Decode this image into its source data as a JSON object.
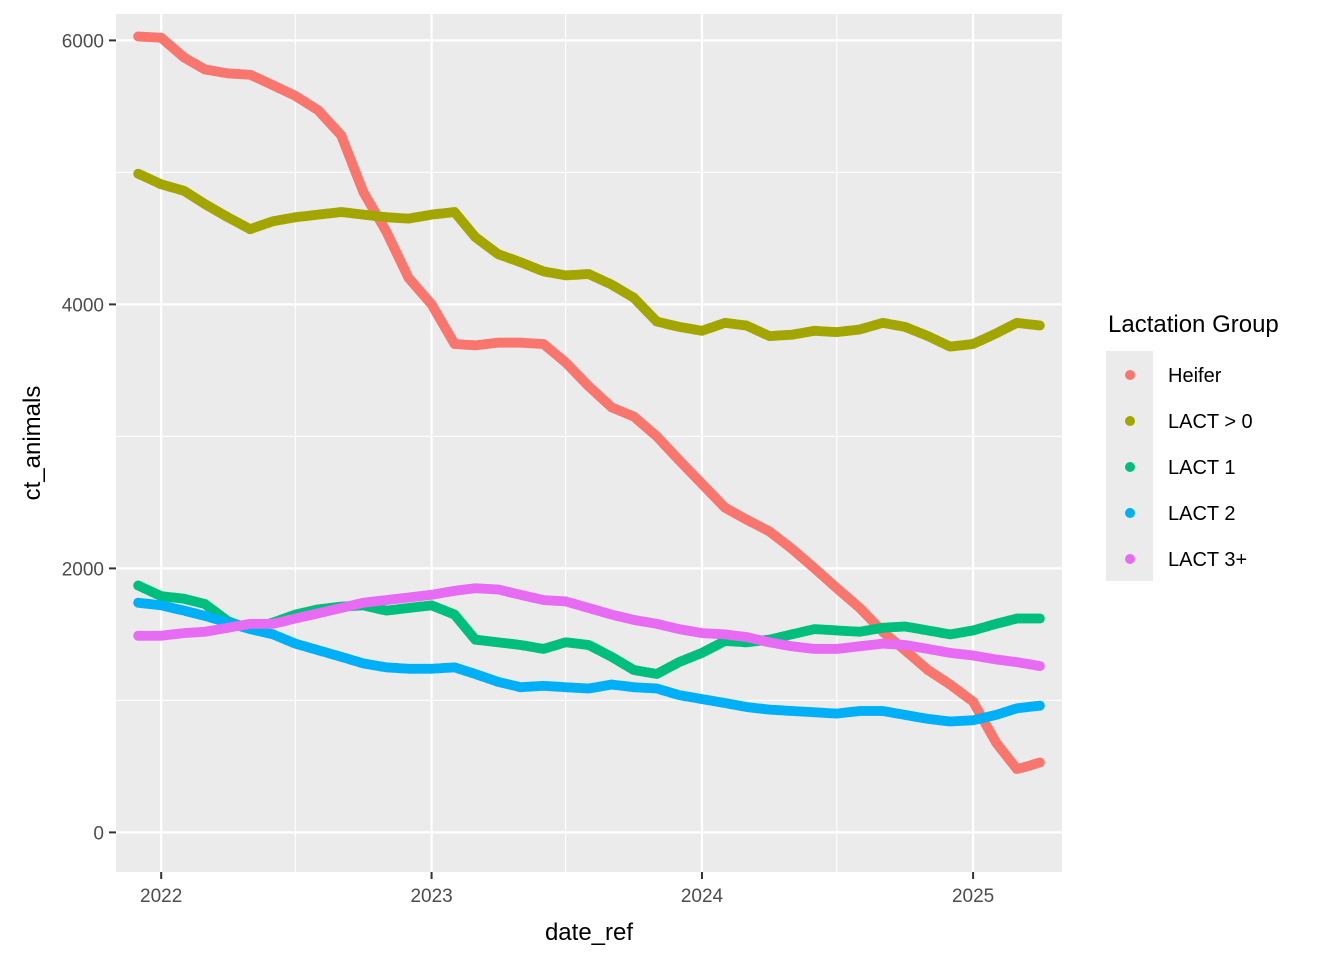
{
  "chart_data": {
    "type": "scatter",
    "xlabel": "date_ref",
    "ylabel": "ct_animals",
    "xlim": [
      "2021-11-01",
      "2025-05-01"
    ],
    "ylim": [
      -300,
      6200
    ],
    "x_ticks": [
      {
        "date": "2022-01-01",
        "label": "2022"
      },
      {
        "date": "2023-01-01",
        "label": "2023"
      },
      {
        "date": "2024-01-01",
        "label": "2024"
      },
      {
        "date": "2025-01-01",
        "label": "2025"
      }
    ],
    "x_minor_ticks": [
      "2022-07-01",
      "2023-07-01",
      "2024-07-01"
    ],
    "y_ticks": [
      {
        "value": 0,
        "label": "0"
      },
      {
        "value": 2000,
        "label": "2000"
      },
      {
        "value": 4000,
        "label": "4000"
      },
      {
        "value": 6000,
        "label": "6000"
      }
    ],
    "y_minor_ticks": [
      1000,
      3000,
      5000
    ],
    "grid": true,
    "legend": {
      "title": "Lactation Group",
      "position": "right"
    },
    "series": [
      {
        "name": "Heifer",
        "color": "#F8766D",
        "points": [
          [
            "2021-12-01",
            6030
          ],
          [
            "2022-01-01",
            6020
          ],
          [
            "2022-02-01",
            5870
          ],
          [
            "2022-03-01",
            5780
          ],
          [
            "2022-04-01",
            5750
          ],
          [
            "2022-05-01",
            5740
          ],
          [
            "2022-06-01",
            5660
          ],
          [
            "2022-07-01",
            5580
          ],
          [
            "2022-08-01",
            5470
          ],
          [
            "2022-09-01",
            5280
          ],
          [
            "2022-10-01",
            4850
          ],
          [
            "2022-11-01",
            4550
          ],
          [
            "2022-12-01",
            4200
          ],
          [
            "2023-01-01",
            4000
          ],
          [
            "2023-02-01",
            3700
          ],
          [
            "2023-03-01",
            3690
          ],
          [
            "2023-04-01",
            3710
          ],
          [
            "2023-05-01",
            3710
          ],
          [
            "2023-06-01",
            3700
          ],
          [
            "2023-07-01",
            3560
          ],
          [
            "2023-08-01",
            3380
          ],
          [
            "2023-09-01",
            3220
          ],
          [
            "2023-10-01",
            3150
          ],
          [
            "2023-11-01",
            3000
          ],
          [
            "2023-12-01",
            2820
          ],
          [
            "2024-01-01",
            2640
          ],
          [
            "2024-02-01",
            2460
          ],
          [
            "2024-03-01",
            2370
          ],
          [
            "2024-04-01",
            2280
          ],
          [
            "2024-05-01",
            2150
          ],
          [
            "2024-06-01",
            2000
          ],
          [
            "2024-07-01",
            1850
          ],
          [
            "2024-08-01",
            1700
          ],
          [
            "2024-09-01",
            1520
          ],
          [
            "2024-10-01",
            1380
          ],
          [
            "2024-11-01",
            1230
          ],
          [
            "2024-12-01",
            1120
          ],
          [
            "2025-01-01",
            990
          ],
          [
            "2025-02-01",
            680
          ],
          [
            "2025-03-01",
            480
          ],
          [
            "2025-03-15",
            500
          ],
          [
            "2025-04-01",
            530
          ]
        ]
      },
      {
        "name": "LACT > 0",
        "color": "#A3A500",
        "points": [
          [
            "2021-12-01",
            4990
          ],
          [
            "2022-01-01",
            4910
          ],
          [
            "2022-02-01",
            4860
          ],
          [
            "2022-03-01",
            4760
          ],
          [
            "2022-04-01",
            4660
          ],
          [
            "2022-05-01",
            4570
          ],
          [
            "2022-06-01",
            4630
          ],
          [
            "2022-07-01",
            4660
          ],
          [
            "2022-08-01",
            4680
          ],
          [
            "2022-09-01",
            4700
          ],
          [
            "2022-10-01",
            4680
          ],
          [
            "2022-11-01",
            4660
          ],
          [
            "2022-12-01",
            4650
          ],
          [
            "2023-01-01",
            4680
          ],
          [
            "2023-02-01",
            4700
          ],
          [
            "2023-03-01",
            4510
          ],
          [
            "2023-04-01",
            4380
          ],
          [
            "2023-05-01",
            4320
          ],
          [
            "2023-06-01",
            4250
          ],
          [
            "2023-07-01",
            4220
          ],
          [
            "2023-08-01",
            4230
          ],
          [
            "2023-09-01",
            4150
          ],
          [
            "2023-10-01",
            4050
          ],
          [
            "2023-11-01",
            3870
          ],
          [
            "2023-12-01",
            3830
          ],
          [
            "2024-01-01",
            3800
          ],
          [
            "2024-02-01",
            3860
          ],
          [
            "2024-03-01",
            3840
          ],
          [
            "2024-04-01",
            3760
          ],
          [
            "2024-05-01",
            3770
          ],
          [
            "2024-06-01",
            3800
          ],
          [
            "2024-07-01",
            3790
          ],
          [
            "2024-08-01",
            3810
          ],
          [
            "2024-09-01",
            3860
          ],
          [
            "2024-10-01",
            3830
          ],
          [
            "2024-11-01",
            3760
          ],
          [
            "2024-12-01",
            3680
          ],
          [
            "2025-01-01",
            3700
          ],
          [
            "2025-02-01",
            3780
          ],
          [
            "2025-03-01",
            3860
          ],
          [
            "2025-04-01",
            3840
          ]
        ]
      },
      {
        "name": "LACT 1",
        "color": "#00BF7D",
        "points": [
          [
            "2021-12-01",
            1870
          ],
          [
            "2022-01-01",
            1790
          ],
          [
            "2022-02-01",
            1770
          ],
          [
            "2022-03-01",
            1730
          ],
          [
            "2022-04-01",
            1600
          ],
          [
            "2022-05-01",
            1540
          ],
          [
            "2022-06-01",
            1590
          ],
          [
            "2022-07-01",
            1650
          ],
          [
            "2022-08-01",
            1690
          ],
          [
            "2022-09-01",
            1710
          ],
          [
            "2022-10-01",
            1720
          ],
          [
            "2022-11-01",
            1680
          ],
          [
            "2022-12-01",
            1700
          ],
          [
            "2023-01-01",
            1720
          ],
          [
            "2023-02-01",
            1650
          ],
          [
            "2023-03-01",
            1460
          ],
          [
            "2023-04-01",
            1440
          ],
          [
            "2023-05-01",
            1420
          ],
          [
            "2023-06-01",
            1390
          ],
          [
            "2023-07-01",
            1440
          ],
          [
            "2023-08-01",
            1420
          ],
          [
            "2023-09-01",
            1330
          ],
          [
            "2023-10-01",
            1230
          ],
          [
            "2023-11-01",
            1200
          ],
          [
            "2023-12-01",
            1290
          ],
          [
            "2024-01-01",
            1360
          ],
          [
            "2024-02-01",
            1450
          ],
          [
            "2024-03-01",
            1440
          ],
          [
            "2024-04-01",
            1460
          ],
          [
            "2024-05-01",
            1500
          ],
          [
            "2024-06-01",
            1540
          ],
          [
            "2024-07-01",
            1530
          ],
          [
            "2024-08-01",
            1520
          ],
          [
            "2024-09-01",
            1550
          ],
          [
            "2024-10-01",
            1560
          ],
          [
            "2024-11-01",
            1530
          ],
          [
            "2024-12-01",
            1500
          ],
          [
            "2025-01-01",
            1530
          ],
          [
            "2025-02-01",
            1580
          ],
          [
            "2025-03-01",
            1620
          ],
          [
            "2025-04-01",
            1620
          ]
        ]
      },
      {
        "name": "LACT 2",
        "color": "#00B0F6",
        "points": [
          [
            "2021-12-01",
            1740
          ],
          [
            "2022-01-01",
            1720
          ],
          [
            "2022-02-01",
            1680
          ],
          [
            "2022-03-01",
            1640
          ],
          [
            "2022-04-01",
            1590
          ],
          [
            "2022-05-01",
            1540
          ],
          [
            "2022-06-01",
            1500
          ],
          [
            "2022-07-01",
            1430
          ],
          [
            "2022-08-01",
            1380
          ],
          [
            "2022-09-01",
            1330
          ],
          [
            "2022-10-01",
            1280
          ],
          [
            "2022-11-01",
            1250
          ],
          [
            "2022-12-01",
            1240
          ],
          [
            "2023-01-01",
            1240
          ],
          [
            "2023-02-01",
            1250
          ],
          [
            "2023-03-01",
            1200
          ],
          [
            "2023-04-01",
            1140
          ],
          [
            "2023-05-01",
            1100
          ],
          [
            "2023-06-01",
            1110
          ],
          [
            "2023-07-01",
            1100
          ],
          [
            "2023-08-01",
            1090
          ],
          [
            "2023-09-01",
            1120
          ],
          [
            "2023-10-01",
            1100
          ],
          [
            "2023-11-01",
            1090
          ],
          [
            "2023-12-01",
            1040
          ],
          [
            "2024-01-01",
            1010
          ],
          [
            "2024-02-01",
            980
          ],
          [
            "2024-03-01",
            950
          ],
          [
            "2024-04-01",
            930
          ],
          [
            "2024-05-01",
            920
          ],
          [
            "2024-06-01",
            910
          ],
          [
            "2024-07-01",
            900
          ],
          [
            "2024-08-01",
            920
          ],
          [
            "2024-09-01",
            920
          ],
          [
            "2024-10-01",
            890
          ],
          [
            "2024-11-01",
            860
          ],
          [
            "2024-12-01",
            840
          ],
          [
            "2025-01-01",
            850
          ],
          [
            "2025-02-01",
            890
          ],
          [
            "2025-03-01",
            940
          ],
          [
            "2025-04-01",
            960
          ]
        ]
      },
      {
        "name": "LACT 3+",
        "color": "#E76BF3",
        "points": [
          [
            "2021-12-01",
            1490
          ],
          [
            "2022-01-01",
            1490
          ],
          [
            "2022-02-01",
            1510
          ],
          [
            "2022-03-01",
            1520
          ],
          [
            "2022-04-01",
            1550
          ],
          [
            "2022-05-01",
            1580
          ],
          [
            "2022-06-01",
            1580
          ],
          [
            "2022-07-01",
            1620
          ],
          [
            "2022-08-01",
            1660
          ],
          [
            "2022-09-01",
            1700
          ],
          [
            "2022-10-01",
            1740
          ],
          [
            "2022-11-01",
            1760
          ],
          [
            "2022-12-01",
            1780
          ],
          [
            "2023-01-01",
            1800
          ],
          [
            "2023-02-01",
            1830
          ],
          [
            "2023-03-01",
            1850
          ],
          [
            "2023-04-01",
            1840
          ],
          [
            "2023-05-01",
            1800
          ],
          [
            "2023-06-01",
            1760
          ],
          [
            "2023-07-01",
            1750
          ],
          [
            "2023-08-01",
            1700
          ],
          [
            "2023-09-01",
            1650
          ],
          [
            "2023-10-01",
            1610
          ],
          [
            "2023-11-01",
            1580
          ],
          [
            "2023-12-01",
            1540
          ],
          [
            "2024-01-01",
            1510
          ],
          [
            "2024-02-01",
            1500
          ],
          [
            "2024-03-01",
            1480
          ],
          [
            "2024-04-01",
            1440
          ],
          [
            "2024-05-01",
            1410
          ],
          [
            "2024-06-01",
            1390
          ],
          [
            "2024-07-01",
            1390
          ],
          [
            "2024-08-01",
            1410
          ],
          [
            "2024-09-01",
            1430
          ],
          [
            "2024-10-01",
            1420
          ],
          [
            "2024-11-01",
            1390
          ],
          [
            "2024-12-01",
            1360
          ],
          [
            "2025-01-01",
            1340
          ],
          [
            "2025-02-01",
            1310
          ],
          [
            "2025-03-01",
            1290
          ],
          [
            "2025-04-01",
            1260
          ]
        ]
      }
    ]
  }
}
